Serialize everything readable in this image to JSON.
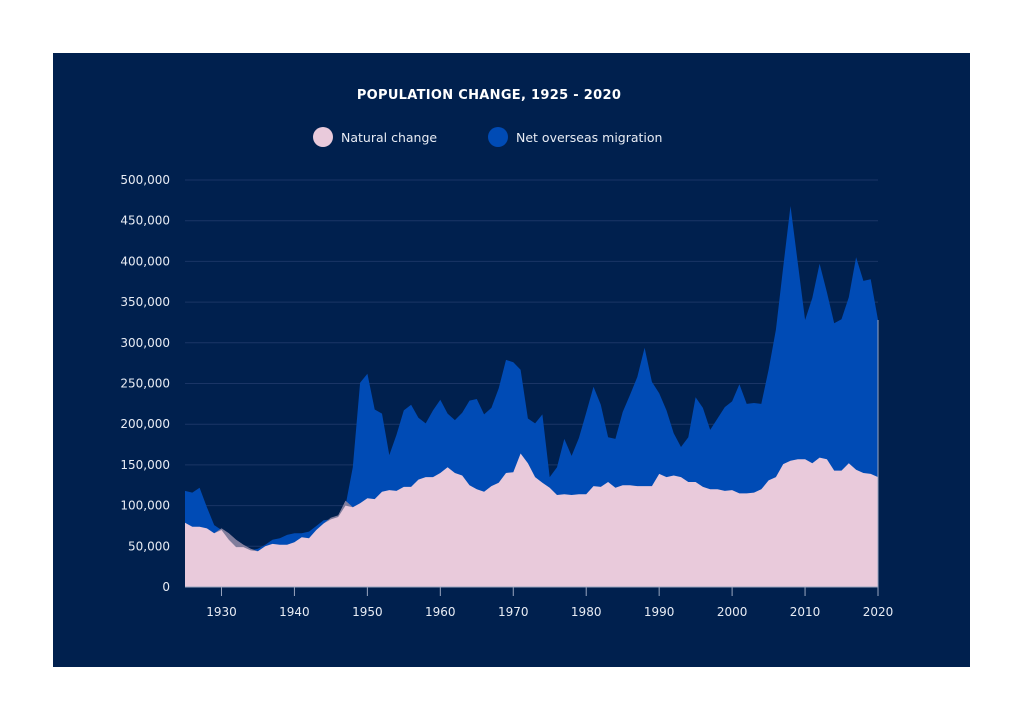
{
  "chart_data": {
    "type": "area",
    "stacked": true,
    "title": "POPULATION CHANGE, 1925 - 2020",
    "xlabel": "",
    "ylabel": "",
    "legend_position": "top",
    "grid": true,
    "xlim": [
      1925,
      2020
    ],
    "ylim": [
      0,
      500000
    ],
    "x_ticks": [
      "1930",
      "1940",
      "1950",
      "1960",
      "1970",
      "1980",
      "1990",
      "2000",
      "2010",
      "2020"
    ],
    "y_ticks": [
      "0",
      "50,000",
      "100,000",
      "150,000",
      "200,000",
      "250,000",
      "300,000",
      "350,000",
      "400,000",
      "450,000",
      "500,000"
    ],
    "x_start": 1925,
    "series": [
      {
        "name": "Natural change",
        "color": "#e9cadb",
        "values": [
          79000,
          74000,
          74000,
          72000,
          66000,
          72000,
          66000,
          58000,
          52000,
          47000,
          44000,
          50000,
          53000,
          52000,
          52000,
          55000,
          61000,
          60000,
          70000,
          78000,
          85000,
          88000,
          106000,
          98000,
          103000,
          109000,
          108000,
          117000,
          119000,
          118000,
          123000,
          123000,
          132000,
          135000,
          135000,
          140000,
          147000,
          140000,
          137000,
          125000,
          120000,
          117000,
          124000,
          128000,
          140000,
          141000,
          164000,
          152000,
          135000,
          128000,
          122000,
          113000,
          114000,
          113000,
          114000,
          114000,
          124000,
          123000,
          129000,
          122000,
          125000,
          125000,
          124000,
          124000,
          124000,
          139000,
          135000,
          137000,
          135000,
          129000,
          129000,
          123000,
          120000,
          120000,
          118000,
          119000,
          115000,
          115000,
          116000,
          120000,
          131000,
          135000,
          151000,
          155000,
          157000,
          157000,
          152000,
          159000,
          157000,
          143000,
          143000,
          152000,
          144000,
          140000,
          139000,
          135000
        ]
      },
      {
        "name": "Net overseas migration",
        "color": "#004bb5",
        "values": [
          39000,
          42000,
          48000,
          26000,
          10000,
          -2000,
          -8000,
          -9000,
          -3000,
          -2000,
          3000,
          2000,
          5000,
          8000,
          12000,
          11000,
          5000,
          8000,
          5000,
          4000,
          -2000,
          -2000,
          -6000,
          49000,
          148000,
          153000,
          110000,
          96000,
          43000,
          69000,
          94000,
          101000,
          76000,
          66000,
          82000,
          90000,
          66000,
          65000,
          77000,
          104000,
          111000,
          95000,
          96000,
          116000,
          139000,
          135000,
          103000,
          55000,
          66000,
          84000,
          13000,
          34000,
          68000,
          48000,
          69000,
          100000,
          122000,
          101000,
          55000,
          60000,
          90000,
          111000,
          134000,
          170000,
          128000,
          99000,
          82000,
          52000,
          37000,
          55000,
          104000,
          97000,
          73000,
          87000,
          103000,
          109000,
          134000,
          110000,
          110000,
          105000,
          136000,
          181000,
          242000,
          313000,
          241000,
          171000,
          203000,
          238000,
          205000,
          181000,
          186000,
          204000,
          261000,
          236000,
          239000,
          193000
        ]
      }
    ]
  }
}
